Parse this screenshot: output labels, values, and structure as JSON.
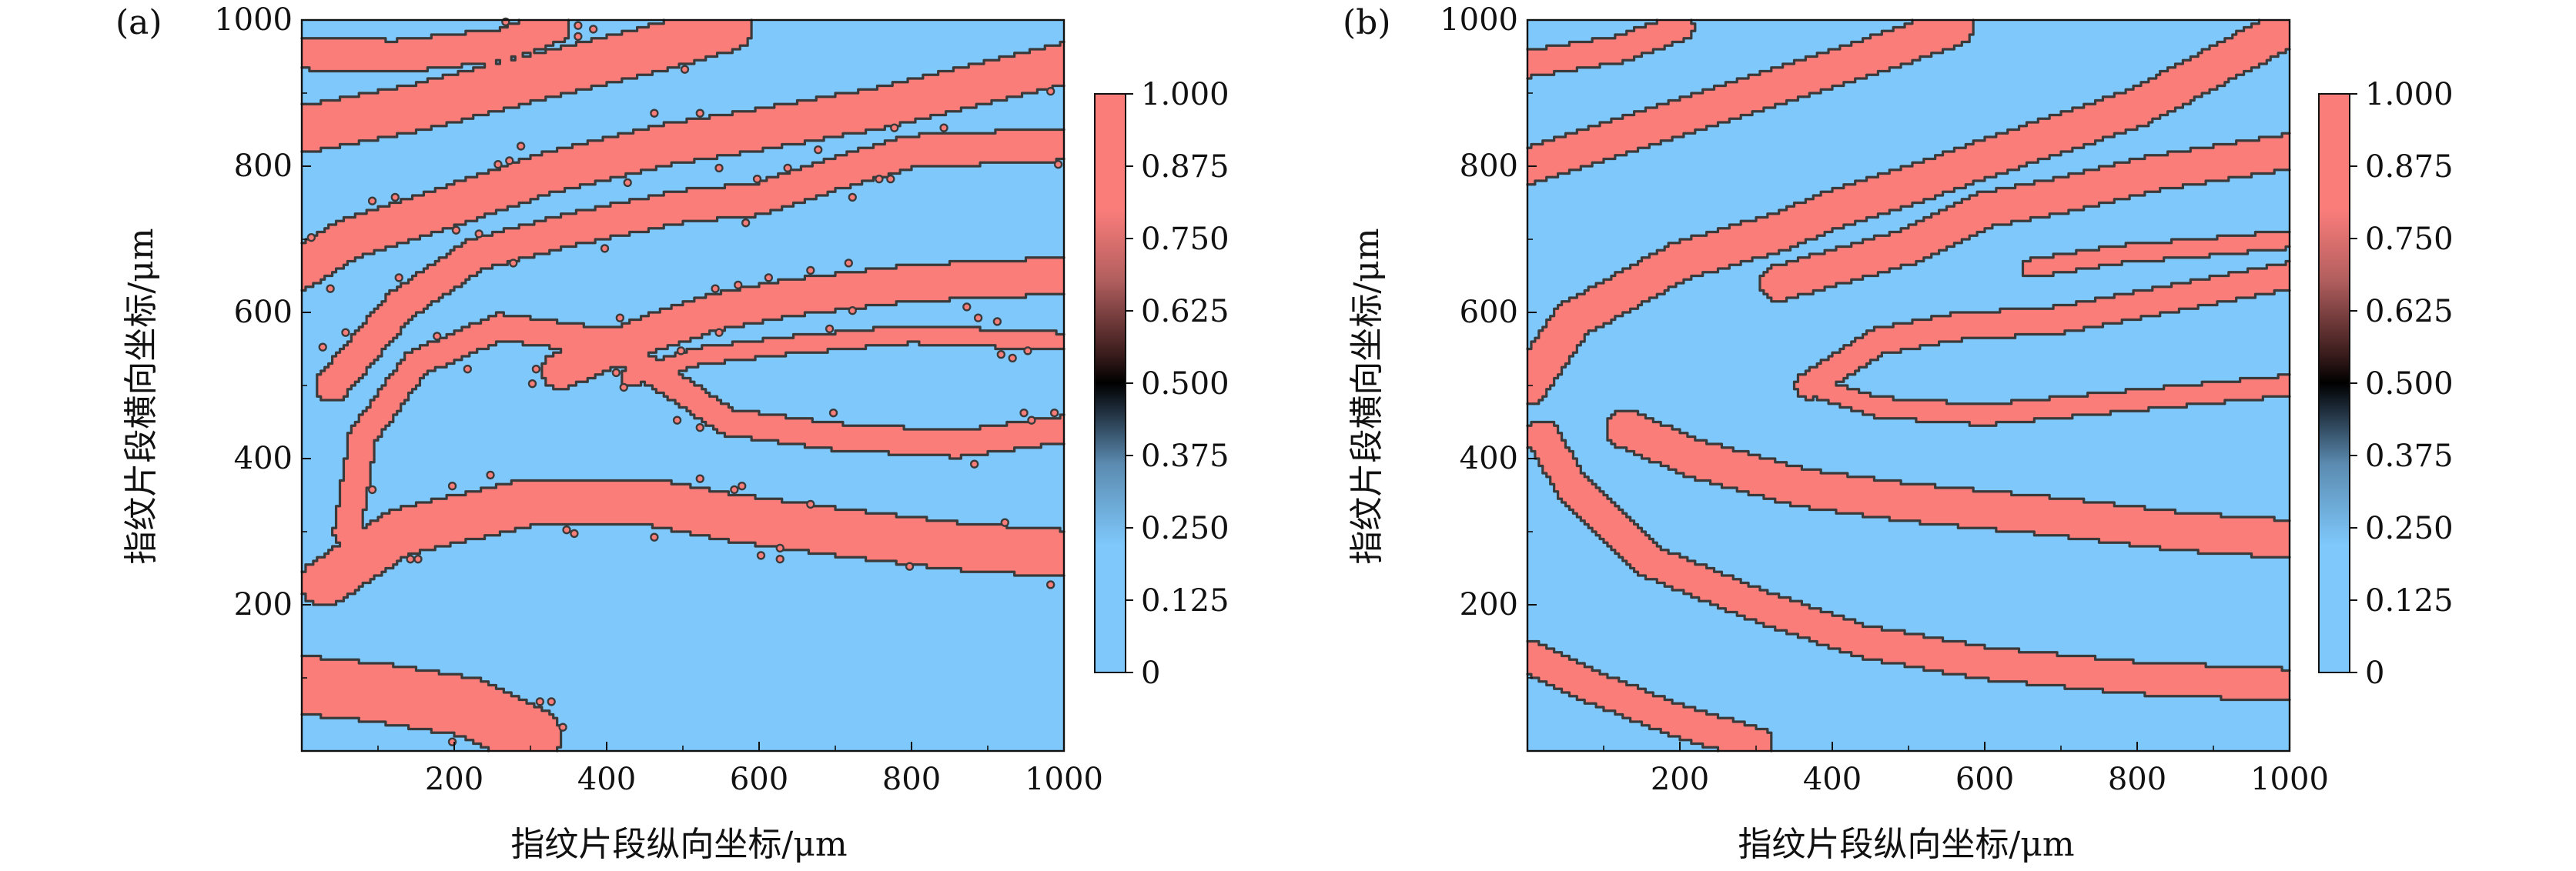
{
  "chart_data": [
    {
      "type": "heatmap",
      "panel_label": "(a)",
      "title": "",
      "xlabel": "指纹片段纵向坐标/μm",
      "ylabel": "指纹片段横向坐标/μm",
      "xlim": [
        0,
        1000
      ],
      "ylim": [
        0,
        1000
      ],
      "xticks": [
        "200",
        "400",
        "600",
        "800",
        "1000"
      ],
      "yticks": [
        "200",
        "400",
        "600",
        "800",
        "1000"
      ],
      "colorbar": {
        "ticks": [
          "0",
          "0.125",
          "0.250",
          "0.375",
          "0.500",
          "0.625",
          "0.750",
          "0.875",
          "1.000"
        ],
        "range": [
          0,
          1
        ],
        "colormap": [
          "#7ec8fb",
          "#7ec8fb",
          "#5b8bb0",
          "#1a2633",
          "#000000",
          "#3a1c1c",
          "#b35f5f",
          "#fa7d7a",
          "#fa7d7a"
        ]
      },
      "levels": {
        "low_value": 0,
        "high_value": 1,
        "low_color": "#7ec8fb",
        "high_color": "#fa7d7a",
        "contour_color": "#3a3a3a"
      },
      "description_of_field": "binary fingerprint ridge pattern with speckle noise",
      "ridges_high": [
        {
          "center": [
            [
              0,
              955
            ],
            [
              120,
              950
            ],
            [
              260,
              965
            ],
            [
              330,
              990
            ]
          ],
          "half_width": 22
        },
        {
          "center": [
            [
              0,
              850
            ],
            [
              150,
              880
            ],
            [
              300,
              920
            ],
            [
              460,
              960
            ],
            [
              560,
              990
            ]
          ],
          "half_width": 32
        },
        {
          "center": [
            [
              0,
              660
            ],
            [
              60,
              700
            ],
            [
              180,
              740
            ],
            [
              320,
              790
            ],
            [
              480,
              830
            ],
            [
              600,
              850
            ],
            [
              760,
              880
            ],
            [
              1000,
              940
            ]
          ],
          "half_width": 28
        },
        {
          "center": [
            [
              40,
              500
            ],
            [
              130,
              610
            ],
            [
              230,
              680
            ],
            [
              360,
              715
            ],
            [
              500,
              745
            ],
            [
              600,
              755
            ],
            [
              700,
              790
            ],
            [
              800,
              820
            ],
            [
              1000,
              830
            ]
          ],
          "half_width": 22
        },
        {
          "center": [
            [
              340,
              520
            ],
            [
              440,
              565
            ],
            [
              540,
              600
            ],
            [
              640,
              620
            ],
            [
              800,
              640
            ],
            [
              1000,
              650
            ]
          ],
          "half_width": 25
        },
        {
          "center": [
            [
              430,
              510
            ],
            [
              520,
              540
            ],
            [
              640,
              555
            ],
            [
              800,
              570
            ],
            [
              1000,
              560
            ]
          ],
          "half_width": 12
        },
        {
          "center": [
            [
              60,
              300
            ],
            [
              80,
              430
            ],
            [
              150,
              530
            ],
            [
              260,
              580
            ],
            [
              400,
              560
            ],
            [
              560,
              450
            ],
            [
              700,
              430
            ],
            [
              860,
              420
            ],
            [
              1000,
              440
            ]
          ],
          "half_width": 18
        },
        {
          "center": [
            [
              30,
              230
            ],
            [
              130,
              300
            ],
            [
              300,
              340
            ],
            [
              460,
              340
            ],
            [
              560,
              320
            ],
            [
              700,
              300
            ],
            [
              860,
              280
            ],
            [
              1000,
              270
            ]
          ],
          "half_width": 32
        },
        {
          "center": [
            [
              0,
              90
            ],
            [
              100,
              80
            ],
            [
              220,
              60
            ],
            [
              300,
              20
            ]
          ],
          "half_width": 40
        }
      ],
      "speckle": true
    },
    {
      "type": "heatmap",
      "panel_label": "(b)",
      "title": "",
      "xlabel": "指纹片段纵向坐标/μm",
      "ylabel": "指纹片段横向坐标/μm",
      "xlim": [
        0,
        1000
      ],
      "ylim": [
        0,
        1000
      ],
      "xticks": [
        "200",
        "400",
        "600",
        "800",
        "1000"
      ],
      "yticks": [
        "200",
        "400",
        "600",
        "800",
        "1000"
      ],
      "colorbar": {
        "ticks": [
          "0",
          "0.125",
          "0.250",
          "0.375",
          "0.500",
          "0.625",
          "0.750",
          "0.875",
          "1.000"
        ],
        "range": [
          0,
          1
        ],
        "colormap": [
          "#7ec8fb",
          "#7ec8fb",
          "#5b8bb0",
          "#1a2633",
          "#000000",
          "#3a1c1c",
          "#b35f5f",
          "#fa7d7a",
          "#fa7d7a"
        ]
      },
      "levels": {
        "low_value": 0,
        "high_value": 1,
        "low_color": "#7ec8fb",
        "high_color": "#fa7d7a",
        "contour_color": "#3a3a3a"
      },
      "description_of_field": "binary fingerprint ridge pattern, smoothed (staircase contours)",
      "ridges_high": [
        {
          "center": [
            [
              0,
              940
            ],
            [
              120,
              960
            ],
            [
              200,
              990
            ]
          ],
          "half_width": 18
        },
        {
          "center": [
            [
              0,
              800
            ],
            [
              150,
              850
            ],
            [
              300,
              900
            ],
            [
              450,
              950
            ],
            [
              560,
              990
            ]
          ],
          "half_width": 25
        },
        {
          "center": [
            [
              0,
              500
            ],
            [
              60,
              590
            ],
            [
              200,
              670
            ],
            [
              330,
              710
            ],
            [
              400,
              740
            ],
            [
              520,
              780
            ],
            [
              600,
              810
            ],
            [
              800,
              880
            ],
            [
              1000,
              990
            ]
          ],
          "half_width": 26
        },
        {
          "center": [
            [
              330,
              640
            ],
            [
              500,
              690
            ],
            [
              600,
              740
            ],
            [
              700,
              760
            ],
            [
              820,
              790
            ],
            [
              1000,
              820
            ]
          ],
          "half_width": 24
        },
        {
          "center": [
            [
              660,
              660
            ],
            [
              780,
              680
            ],
            [
              900,
              690
            ],
            [
              1000,
              700
            ]
          ],
          "half_width": 12
        },
        {
          "center": [
            [
              370,
              500
            ],
            [
              460,
              560
            ],
            [
              560,
              580
            ],
            [
              700,
              590
            ],
            [
              850,
              620
            ],
            [
              1000,
              650
            ]
          ],
          "half_width": 18
        },
        {
          "center": [
            [
              370,
              500
            ],
            [
              460,
              470
            ],
            [
              600,
              460
            ],
            [
              800,
              480
            ],
            [
              1000,
              500
            ]
          ],
          "half_width": 14
        },
        {
          "center": [
            [
              130,
              440
            ],
            [
              220,
              400
            ],
            [
              360,
              360
            ],
            [
              500,
              340
            ],
            [
              700,
              320
            ],
            [
              860,
              300
            ],
            [
              1000,
              290
            ]
          ],
          "half_width": 26
        },
        {
          "center": [
            [
              20,
              430
            ],
            [
              60,
              360
            ],
            [
              160,
              260
            ],
            [
              300,
              200
            ],
            [
              440,
              150
            ],
            [
              600,
              120
            ],
            [
              800,
              100
            ],
            [
              1000,
              90
            ]
          ],
          "half_width": 22
        },
        {
          "center": [
            [
              0,
              130
            ],
            [
              80,
              90
            ],
            [
              200,
              40
            ],
            [
              300,
              10
            ]
          ],
          "half_width": 22
        }
      ],
      "speckle": false
    }
  ]
}
